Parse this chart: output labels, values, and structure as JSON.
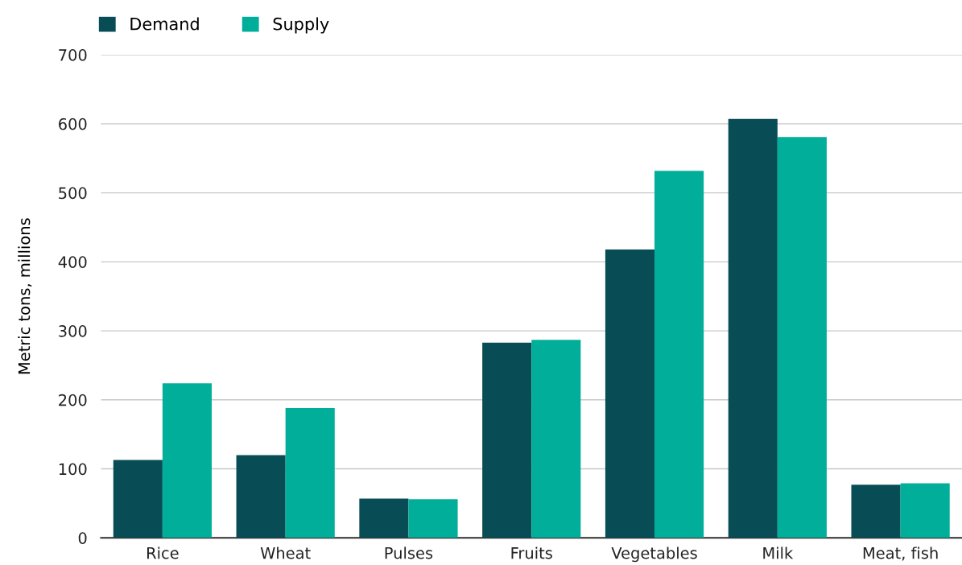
{
  "chart_data": {
    "type": "bar",
    "ylabel": "Metric tons, millions",
    "categories": [
      "Rice",
      "Wheat",
      "Pulses",
      "Fruits",
      "Vegetables",
      "Milk",
      "Meat, fish"
    ],
    "series": [
      {
        "name": "Demand",
        "color": "#084c56",
        "values": [
          113,
          120,
          57,
          283,
          418,
          607,
          77
        ]
      },
      {
        "name": "Supply",
        "color": "#00ae9a",
        "values": [
          224,
          188,
          56,
          287,
          532,
          581,
          79
        ]
      }
    ],
    "ylim": [
      0,
      700
    ],
    "yticks": [
      0,
      100,
      200,
      300,
      400,
      500,
      600,
      700
    ],
    "grid": "y",
    "legend": "top left"
  }
}
